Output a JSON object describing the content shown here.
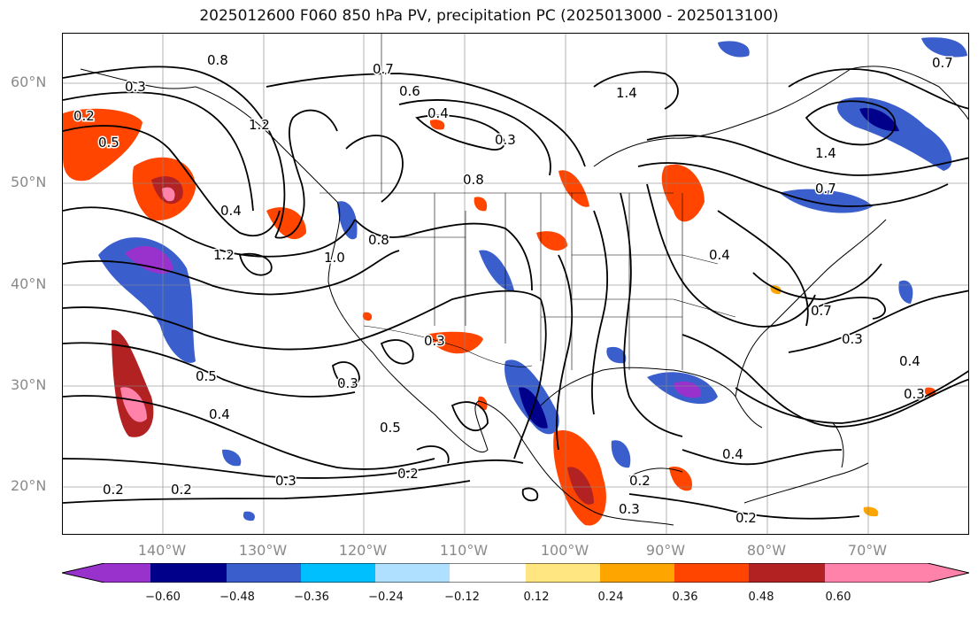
{
  "title": "2025012600 F060 850 hPa PV, precipitation PC (2025013000 - 2025013100)",
  "lat_labels": [
    "60°N",
    "50°N",
    "40°N",
    "30°N",
    "20°N"
  ],
  "lon_labels": [
    "140°W",
    "130°W",
    "120°W",
    "110°W",
    "100°W",
    "90°W",
    "80°W",
    "70°W"
  ],
  "contour_labels": [
    "0.8",
    "0.3",
    "0.2",
    "0.5",
    "1.2",
    "0.4",
    "1.2",
    "0.7",
    "0.6",
    "0.4",
    "0.3",
    "0.8",
    "1.4",
    "1.4",
    "0.7",
    "0.7",
    "0.4",
    "0.7",
    "0.8",
    "1.0",
    "0.3",
    "0.3",
    "0.5",
    "0.4",
    "0.5",
    "0.2",
    "0.2",
    "0.3",
    "0.2",
    "0.3",
    "0.2",
    "0.4",
    "0.3",
    "0.4",
    "0.3",
    "0.2"
  ],
  "colorbar": {
    "ticks": [
      "−0.60",
      "−0.48",
      "−0.36",
      "−0.24",
      "−0.12",
      "0.12",
      "0.24",
      "0.36",
      "0.48",
      "0.60"
    ],
    "colors": [
      "#9932cc",
      "#00008b",
      "#3a5fcd",
      "#00bfff",
      "#b0e0ff",
      "#ffffff",
      "#ffe680",
      "#ffa500",
      "#ff4500",
      "#b22222",
      "#ff82ab"
    ]
  }
}
